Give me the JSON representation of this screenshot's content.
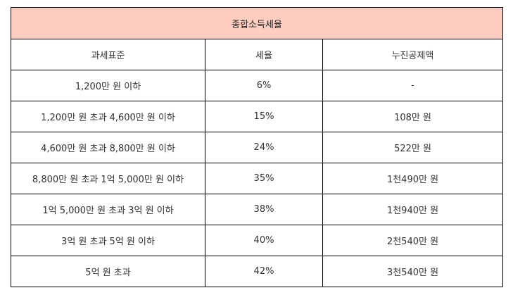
{
  "colors": {
    "title_bg": "#ffccc0",
    "border": "#000000",
    "text": "#333333"
  },
  "table": {
    "title": "종합소득세율",
    "headers": [
      "과세표준",
      "세율",
      "누진공제액"
    ],
    "rows": [
      [
        "1,200만 원 이하",
        "6%",
        "-"
      ],
      [
        "1,200만 원 초과 4,600만 원 이하",
        "15%",
        "108만 원"
      ],
      [
        "4,600만 원 초과 8,800만 원 이하",
        "24%",
        "522만 원"
      ],
      [
        "8,800만 원 초과 1억 5,000만 원 이하",
        "35%",
        "1천490만 원"
      ],
      [
        "1억 5,000만 원 초과 3억 원 이하",
        "38%",
        "1천940만 원"
      ],
      [
        "3억 원 초과 5억 원 이하",
        "40%",
        "2천540만 원"
      ],
      [
        "5억 원 초과",
        "42%",
        "3천540만 원"
      ]
    ]
  }
}
